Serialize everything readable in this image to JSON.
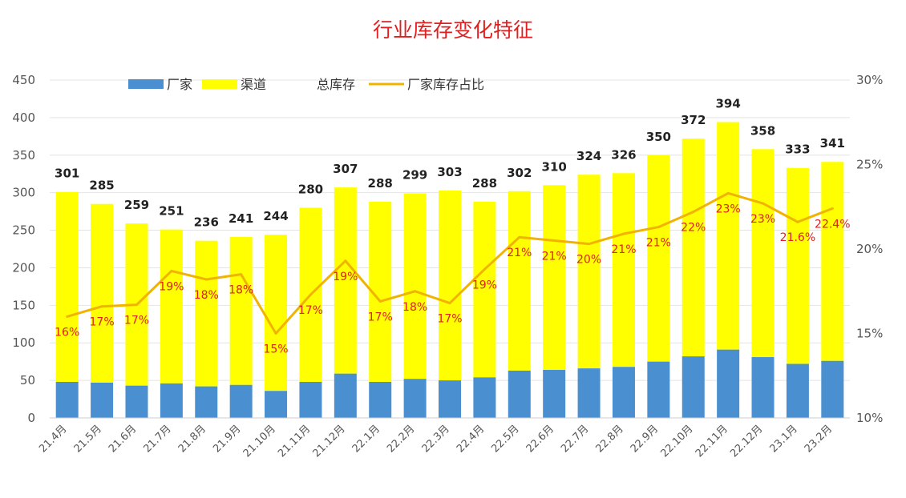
{
  "chart_data": {
    "type": "bar",
    "title": "行业库存变化特征",
    "categories": [
      "21.4月",
      "21.5月",
      "21.6月",
      "21.7月",
      "21.8月",
      "21.9月",
      "21.10月",
      "21.11月",
      "21.12月",
      "22.1月",
      "22.2月",
      "22.3月",
      "22.4月",
      "22.5月",
      "22.6月",
      "22.7月",
      "22.8月",
      "22.9月",
      "22.10月",
      "22.11月",
      "22.12月",
      "23.1月",
      "23.2月"
    ],
    "series": [
      {
        "name": "厂家",
        "type": "bar",
        "stacked": true,
        "color": "#4a8fd0",
        "values": [
          48,
          47,
          43,
          46,
          42,
          44,
          36,
          48,
          59,
          48,
          52,
          50,
          54,
          63,
          64,
          66,
          68,
          75,
          82,
          91,
          81,
          72,
          76
        ]
      },
      {
        "name": "渠道",
        "type": "bar",
        "stacked": true,
        "color": "#ffff00",
        "values": [
          253,
          238,
          216,
          205,
          194,
          197,
          208,
          232,
          248,
          240,
          247,
          253,
          234,
          239,
          246,
          258,
          258,
          275,
          290,
          303,
          277,
          261,
          265
        ]
      },
      {
        "name": "总库存",
        "type": "label",
        "values": [
          301,
          285,
          259,
          251,
          236,
          241,
          244,
          280,
          307,
          288,
          299,
          303,
          288,
          302,
          310,
          324,
          326,
          350,
          372,
          394,
          358,
          333,
          341
        ]
      },
      {
        "name": "厂家库存占比",
        "type": "line",
        "axis": "right",
        "color": "#f0b400",
        "values": [
          16,
          16.6,
          16.7,
          18.7,
          18.2,
          18.5,
          15,
          17.3,
          19.3,
          16.9,
          17.5,
          16.8,
          18.8,
          20.7,
          20.5,
          20.3,
          20.9,
          21.3,
          22.2,
          23.3,
          22.7,
          21.6,
          22.4
        ],
        "labels": [
          "16%",
          "17%",
          "17%",
          "19%",
          "18%",
          "18%",
          "15%",
          "17%",
          "19%",
          "17%",
          "18%",
          "17%",
          "19%",
          "21%",
          "21%",
          "20%",
          "21%",
          "21%",
          "22%",
          "23%",
          "23%",
          "21.6%",
          "22.4%"
        ]
      }
    ],
    "y_left": {
      "min": 0,
      "max": 450,
      "ticks": [
        "0",
        "50",
        "100",
        "150",
        "200",
        "250",
        "300",
        "350",
        "400",
        "450"
      ]
    },
    "y_right": {
      "min": 10,
      "max": 30,
      "ticks": [
        "10%",
        "15%",
        "20%",
        "25%",
        "30%"
      ]
    },
    "grid": true,
    "legend_position": "top"
  }
}
